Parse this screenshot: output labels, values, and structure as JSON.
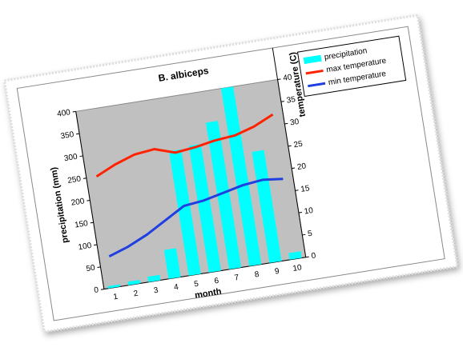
{
  "chart_data": {
    "type": "bar",
    "title": "B. albiceps",
    "xlabel": "month",
    "ylabel": "precipitation (mm)",
    "y2label": "temperature (C)",
    "categories": [
      "1",
      "2",
      "3",
      "4",
      "5",
      "6",
      "7",
      "8",
      "9",
      "10"
    ],
    "series": [
      {
        "name": "precipitation",
        "type": "bar",
        "color": "#00ffff",
        "values": [
          5,
          8,
          12,
          65,
          280,
          285,
          330,
          400,
          250,
          15
        ]
      },
      {
        "name": "max temperature",
        "type": "line",
        "axis": "y2",
        "color": "#ff2200",
        "values": [
          25,
          27,
          28.5,
          29,
          27.5,
          28,
          28.8,
          29.2,
          30.5,
          32.5
        ]
      },
      {
        "name": "min temperature",
        "type": "line",
        "axis": "y2",
        "color": "#1f3fe0",
        "values": [
          7,
          8.5,
          10.5,
          13,
          15.5,
          16,
          17,
          18,
          18.5,
          18
        ]
      }
    ],
    "ylim": [
      0,
      400
    ],
    "yticks": [
      0,
      50,
      100,
      150,
      200,
      250,
      300,
      350,
      400
    ],
    "y2lim": [
      0,
      40
    ],
    "y2ticks": [
      0,
      5,
      10,
      15,
      20,
      25,
      30,
      35,
      40
    ],
    "legend": "upper right",
    "plot_background": "#c0c0c0"
  }
}
